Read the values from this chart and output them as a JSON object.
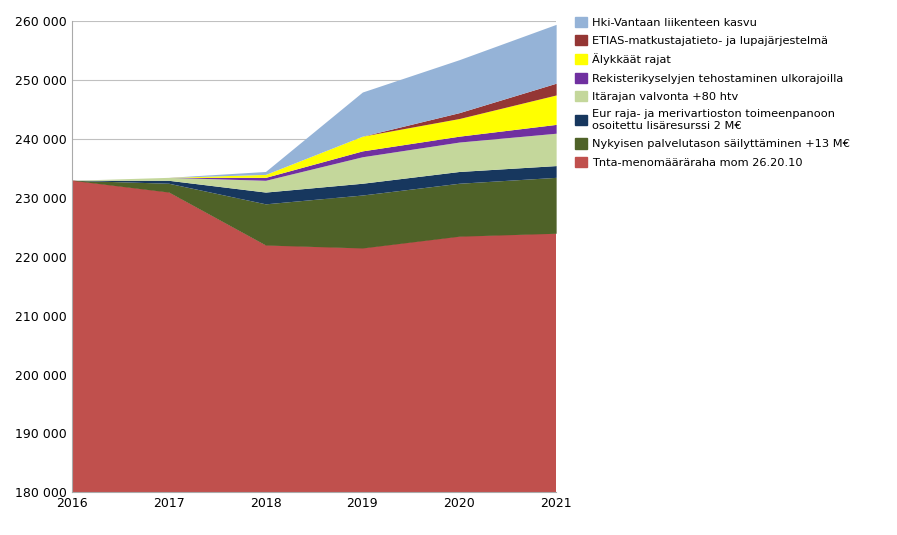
{
  "years": [
    2016,
    2017,
    2018,
    2019,
    2020,
    2021
  ],
  "series": [
    {
      "name": "Tnta-menomääräraha mom 26.20.10",
      "color": "#c0504d",
      "values": [
        233000,
        231000,
        222000,
        221500,
        223500,
        224000
      ]
    },
    {
      "name": "Nykyisen palvelutason säilyttäminen +13 M€",
      "color": "#4f6228",
      "values": [
        0,
        1500,
        7000,
        9000,
        9000,
        9500
      ]
    },
    {
      "name": "Eur raja- ja merivartioston toimeenpanoon osoitettu lisäresurssi 2 M€",
      "color": "#17375e",
      "values": [
        0,
        500,
        2000,
        2000,
        2000,
        2000
      ]
    },
    {
      "name": "Itärajan valvonta +80 htv",
      "color": "#c4d79b",
      "values": [
        0,
        500,
        2000,
        4500,
        5000,
        5500
      ]
    },
    {
      "name": "Rekisterikyselyjen tehostaminen ulkorajoilla",
      "color": "#7030a0",
      "values": [
        0,
        0,
        500,
        1000,
        1000,
        1500
      ]
    },
    {
      "name": "Älykkäät rajat",
      "color": "#ffff00",
      "values": [
        0,
        0,
        500,
        2500,
        3000,
        5000
      ]
    },
    {
      "name": "ETIAS-matkustajatieto- ja lupajärjestelmä",
      "color": "#943634",
      "values": [
        0,
        0,
        0,
        0,
        1000,
        2000
      ]
    },
    {
      "name": "Hki-Vantaan liikenteen kasvu",
      "color": "#95b3d7",
      "values": [
        0,
        0,
        500,
        7500,
        9000,
        10000
      ]
    }
  ],
  "ylim": [
    180000,
    260000
  ],
  "yticks": [
    180000,
    190000,
    200000,
    210000,
    220000,
    230000,
    240000,
    250000,
    260000
  ],
  "background_color": "#ffffff",
  "grid_color": "#c0c0c0",
  "fig_width": 8.97,
  "fig_height": 5.35,
  "legend_labels_wrapped": [
    "Hki-Vantaan liikenteen kasvu",
    "ETIAS-matkustajatieto- ja lupajärjestelmä",
    "Älykkäät rajat",
    "Rekisterikyselyjen tehostaminen ulkorajoilla",
    "Itärajan valvonta +80 htv",
    "Eur raja- ja merivartioston toimeenpanoon\nosoitettu lisäresurssi 2 M€",
    "Nykyisen palvelutason säilyttäminen +13 M€",
    "Tnta-menomääräraha mom 26.20.10"
  ]
}
